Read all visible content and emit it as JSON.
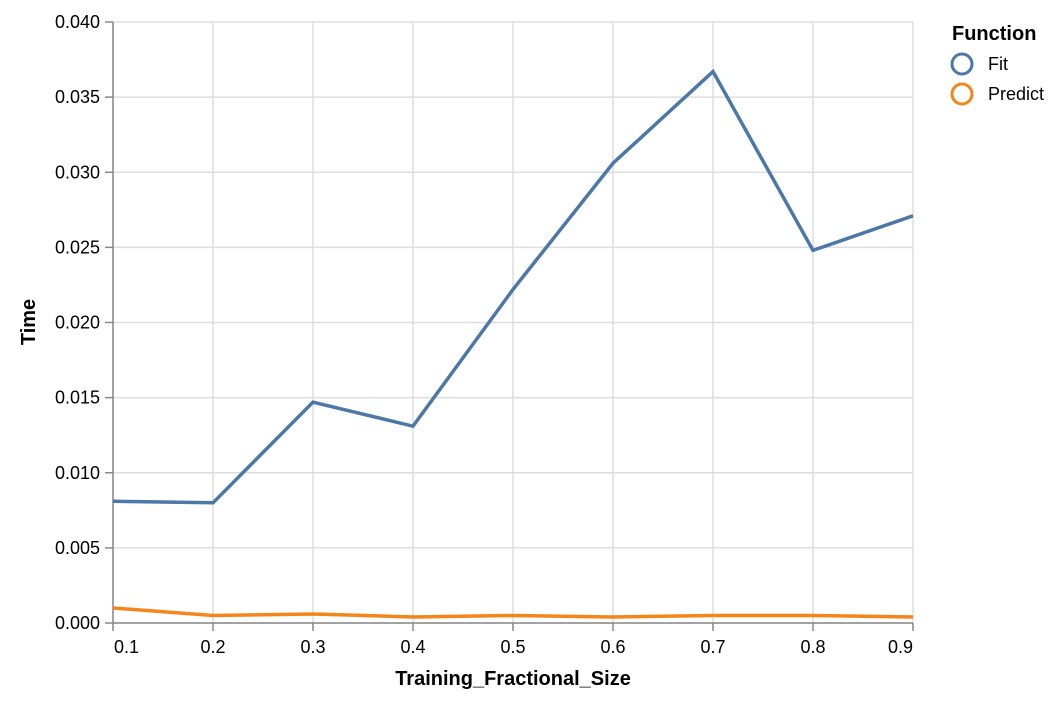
{
  "chart_data": {
    "type": "line",
    "x": [
      0.1,
      0.2,
      0.3,
      0.4,
      0.5,
      0.6,
      0.7,
      0.8,
      0.9
    ],
    "series": [
      {
        "name": "Fit",
        "color": "#4c78a8",
        "values": [
          0.0081,
          0.008,
          0.0147,
          0.0131,
          0.0222,
          0.0306,
          0.0367,
          0.0248,
          0.0271
        ]
      },
      {
        "name": "Predict",
        "color": "#f58518",
        "values": [
          0.001,
          0.0005,
          0.0006,
          0.0004,
          0.0005,
          0.0004,
          0.0005,
          0.0005,
          0.0004
        ]
      }
    ],
    "xlabel": "Training_Fractional_Size",
    "ylabel": "Time",
    "xlim": [
      0.1,
      0.9
    ],
    "ylim": [
      0,
      0.04
    ],
    "x_ticks": [
      "0.1",
      "0.2",
      "0.3",
      "0.4",
      "0.5",
      "0.6",
      "0.7",
      "0.8",
      "0.9"
    ],
    "y_ticks": [
      "0.000",
      "0.005",
      "0.010",
      "0.015",
      "0.020",
      "0.025",
      "0.030",
      "0.035",
      "0.040"
    ],
    "legend": {
      "title": "Function",
      "placement": "top-right"
    },
    "grid": true
  }
}
